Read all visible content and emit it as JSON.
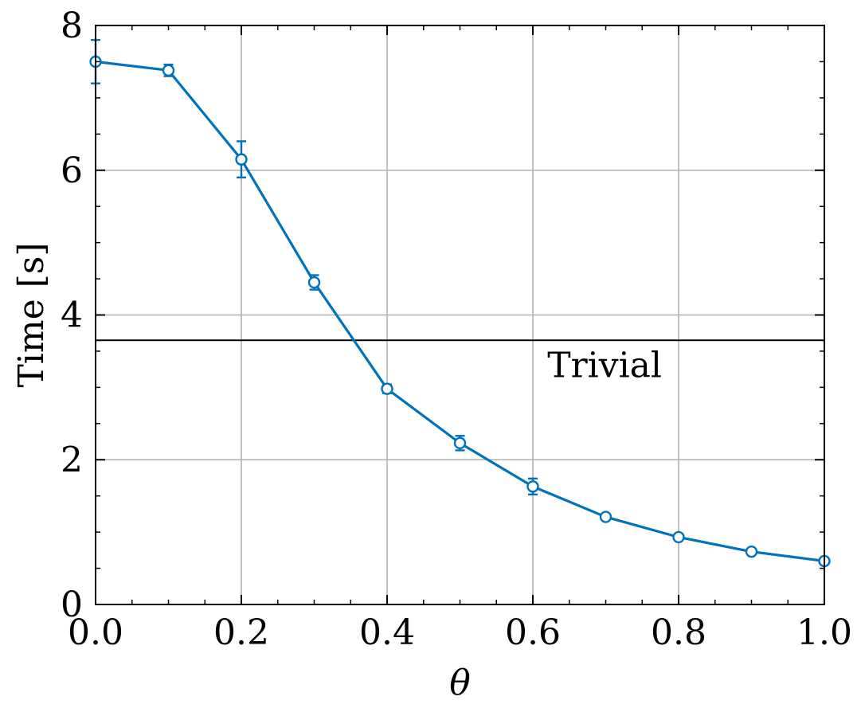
{
  "chart_data": {
    "type": "line",
    "xlabel": "θ",
    "ylabel": "Time [s]",
    "xlim": [
      0.0,
      1.0
    ],
    "ylim": [
      0,
      8
    ],
    "xticks": [
      "0.0",
      "0.2",
      "0.4",
      "0.6",
      "0.8",
      "1.0"
    ],
    "xtick_values": [
      0.0,
      0.2,
      0.4,
      0.6,
      0.8,
      1.0
    ],
    "yticks": [
      "0",
      "2",
      "4",
      "6",
      "8"
    ],
    "ytick_values": [
      0,
      2,
      4,
      6,
      8
    ],
    "grid": true,
    "series": [
      {
        "color": "#0072bd",
        "marker": "open-circle",
        "x": [
          0.0,
          0.1,
          0.2,
          0.3,
          0.4,
          0.5,
          0.6,
          0.7,
          0.8,
          0.9,
          1.0
        ],
        "y": [
          7.5,
          7.38,
          6.15,
          4.45,
          2.98,
          2.23,
          1.63,
          1.21,
          0.93,
          0.73,
          0.6
        ],
        "yerr": [
          0.3,
          0.08,
          0.25,
          0.1,
          0.06,
          0.1,
          0.11,
          0.03,
          0.03,
          0.03,
          0.03
        ]
      }
    ],
    "reference_line": {
      "label": "Trivial",
      "y": 3.65,
      "color": "#000000"
    }
  }
}
